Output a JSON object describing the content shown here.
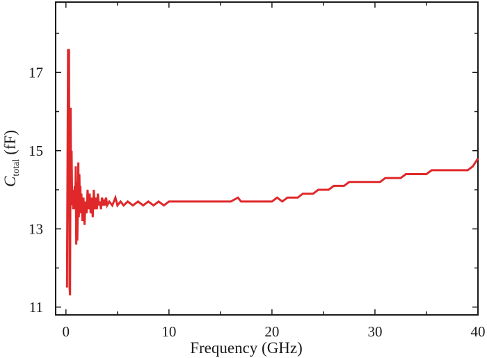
{
  "chart_data": {
    "type": "line",
    "title": "",
    "xlabel": "Frequency (GHz)",
    "ylabel": {
      "symbol": "C",
      "subscript": "total",
      "unit": "(fF)"
    },
    "xlim": [
      -1,
      40
    ],
    "ylim": [
      10.8,
      18.8
    ],
    "xticks": [
      0,
      10,
      20,
      30,
      40
    ],
    "xtick_labels": [
      "0",
      "10",
      "20",
      "30",
      "40"
    ],
    "yticks": [
      11,
      13,
      15,
      17
    ],
    "ytick_labels": [
      "11",
      "13",
      "15",
      "17"
    ],
    "grid": false,
    "legend": "none",
    "series": [
      {
        "color": "#e0282a",
        "x": [
          0.1,
          0.2,
          0.25,
          0.3,
          0.35,
          0.4,
          0.45,
          0.5,
          0.55,
          0.6,
          0.65,
          0.7,
          0.75,
          0.8,
          0.85,
          0.9,
          0.95,
          1.0,
          1.05,
          1.1,
          1.15,
          1.2,
          1.25,
          1.3,
          1.35,
          1.4,
          1.45,
          1.5,
          1.6,
          1.7,
          1.8,
          1.9,
          2.0,
          2.1,
          2.2,
          2.3,
          2.4,
          2.5,
          2.6,
          2.7,
          2.8,
          2.9,
          3.0,
          3.1,
          3.2,
          3.3,
          3.4,
          3.5,
          3.6,
          3.7,
          3.8,
          3.9,
          4.0,
          4.2,
          4.5,
          4.8,
          5.0,
          5.3,
          5.6,
          6.0,
          6.5,
          7.0,
          7.5,
          8.0,
          8.5,
          9.0,
          9.5,
          10.0,
          10.5,
          11.0,
          12.0,
          13.0,
          14.0,
          15.0,
          16.0,
          16.7,
          17.0,
          18.0,
          19.0,
          19.5,
          20.0,
          20.5,
          21.0,
          21.5,
          22.0,
          22.5,
          23.0,
          23.5,
          24.0,
          24.5,
          25.0,
          25.5,
          26.0,
          26.5,
          27.0,
          27.5,
          28.0,
          28.5,
          29.0,
          29.5,
          30.0,
          30.5,
          31.0,
          31.5,
          32.0,
          32.5,
          33.0,
          33.5,
          34.0,
          34.5,
          35.0,
          35.5,
          36.0,
          36.5,
          37.0,
          37.5,
          38.0,
          38.5,
          39.0,
          39.5,
          40.0
        ],
        "y": [
          11.5,
          17.6,
          13.8,
          17.6,
          11.5,
          11.3,
          16.1,
          13.6,
          15.0,
          13.7,
          14.0,
          13.5,
          13.9,
          13.6,
          14.1,
          13.5,
          14.6,
          12.6,
          14.2,
          12.7,
          13.5,
          14.7,
          13.3,
          14.4,
          13.6,
          14.1,
          13.4,
          13.9,
          13.2,
          13.8,
          13.1,
          13.7,
          13.4,
          14.0,
          13.5,
          13.9,
          13.4,
          13.8,
          13.3,
          14.0,
          13.5,
          13.8,
          13.5,
          13.9,
          13.6,
          13.7,
          13.5,
          13.8,
          13.6,
          13.7,
          13.6,
          13.8,
          13.6,
          13.7,
          13.6,
          13.8,
          13.6,
          13.7,
          13.6,
          13.7,
          13.6,
          13.7,
          13.6,
          13.7,
          13.6,
          13.7,
          13.6,
          13.7,
          13.7,
          13.7,
          13.7,
          13.7,
          13.7,
          13.7,
          13.7,
          13.8,
          13.7,
          13.7,
          13.7,
          13.7,
          13.7,
          13.8,
          13.7,
          13.8,
          13.8,
          13.8,
          13.9,
          13.9,
          13.9,
          14.0,
          14.0,
          14.0,
          14.1,
          14.1,
          14.1,
          14.2,
          14.2,
          14.2,
          14.2,
          14.2,
          14.2,
          14.2,
          14.3,
          14.3,
          14.3,
          14.3,
          14.4,
          14.4,
          14.4,
          14.4,
          14.4,
          14.5,
          14.5,
          14.5,
          14.5,
          14.5,
          14.5,
          14.5,
          14.5,
          14.6,
          14.8
        ]
      }
    ]
  }
}
